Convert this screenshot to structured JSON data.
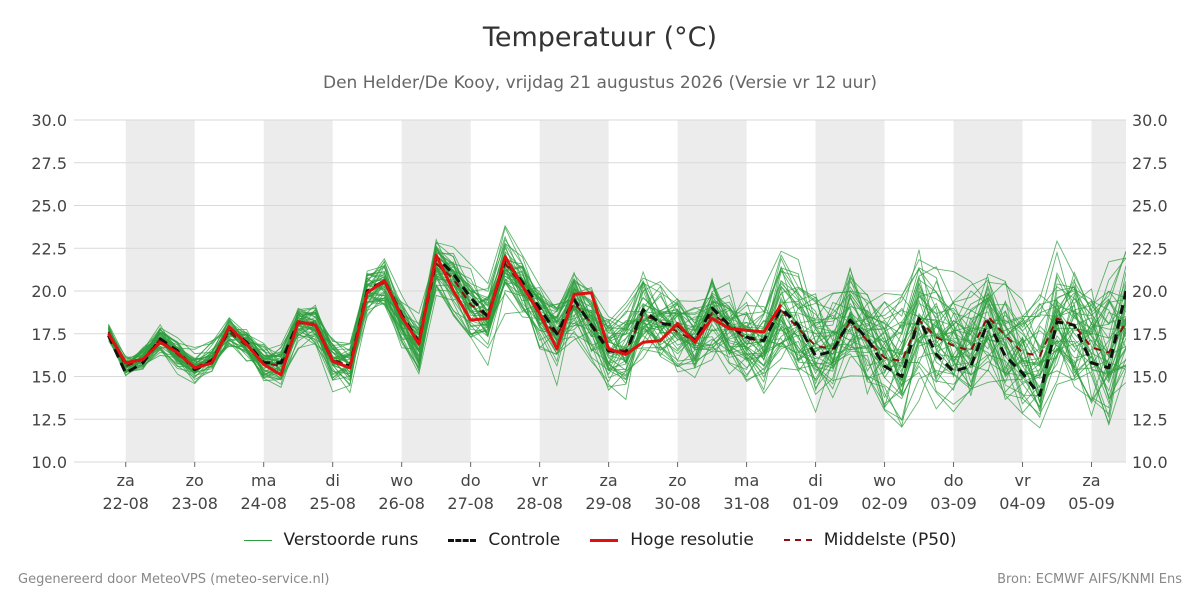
{
  "header": {
    "title": "Temperatuur (°C)",
    "subtitle": "Den Helder/De Kooy, vrijdag 21 augustus 2026 (Versie vr 12 uur)"
  },
  "footer": {
    "left": "Gegenereerd door MeteoVPS (meteo-service.nl)",
    "right": "Bron: ECMWF AIFS/KNMI Ens"
  },
  "colors": {
    "ensemble": "#2e9e3e",
    "control": "#111111",
    "high_res": "#e01010",
    "median": "#8b1010",
    "shade": "#ececec",
    "grid": "#d9d9d9"
  },
  "legend": [
    {
      "label": "Verstoorde runs",
      "color": "#2e9e3e",
      "style": "thin"
    },
    {
      "label": "Controle",
      "color": "#111111",
      "style": "dashed"
    },
    {
      "label": "Hoge resolutie",
      "color": "#e01010",
      "style": "solid"
    },
    {
      "label": "Middelste (P50)",
      "color": "#8b1010",
      "style": "dashed-thin"
    }
  ],
  "chart_data": {
    "type": "line",
    "y_ticks": [
      "10.0",
      "12.5",
      "15.0",
      "17.5",
      "20.0",
      "22.5",
      "25.0",
      "27.5",
      "30.0"
    ],
    "ylim": [
      10,
      30
    ],
    "xlim_days": [
      -0.75,
      14.5
    ],
    "x_ticks": [
      {
        "day": "za",
        "date": "22-08"
      },
      {
        "day": "zo",
        "date": "23-08"
      },
      {
        "day": "ma",
        "date": "24-08"
      },
      {
        "day": "di",
        "date": "25-08"
      },
      {
        "day": "wo",
        "date": "26-08"
      },
      {
        "day": "do",
        "date": "27-08"
      },
      {
        "day": "vr",
        "date": "28-08"
      },
      {
        "day": "za",
        "date": "29-08"
      },
      {
        "day": "zo",
        "date": "30-08"
      },
      {
        "day": "ma",
        "date": "31-08"
      },
      {
        "day": "di",
        "date": "01-09"
      },
      {
        "day": "wo",
        "date": "02-09"
      },
      {
        "day": "do",
        "date": "03-09"
      },
      {
        "day": "vr",
        "date": "04-09"
      },
      {
        "day": "za",
        "date": "05-09"
      }
    ],
    "grid": true,
    "legend_position": "bottom",
    "ensemble_members": 50,
    "x_step_days": 0.25,
    "x_start_days": -0.25,
    "series": [
      {
        "name": "Controle",
        "style": "dashed",
        "values": [
          17.4,
          15.2,
          15.8,
          17.2,
          16.5,
          15.4,
          15.9,
          17.8,
          17.0,
          15.8,
          15.8,
          18.2,
          18.0,
          15.9,
          15.6,
          20.0,
          20.6,
          18.6,
          17.0,
          22.0,
          21.0,
          19.6,
          18.5,
          21.8,
          20.5,
          19.0,
          17.5,
          19.5,
          18.0,
          16.5,
          16.4,
          18.9,
          18.1,
          18.0,
          17.1,
          19.0,
          18.0,
          17.3,
          17.1,
          19.0,
          18.0,
          16.2,
          16.5,
          18.3,
          17.2,
          15.6,
          15.0,
          18.4,
          16.3,
          15.3,
          15.6,
          18.2,
          16.2,
          15.2,
          13.9,
          18.2,
          18.0,
          15.8,
          15.5,
          20.0
        ]
      },
      {
        "name": "Hoge resolutie",
        "style": "solid",
        "values": [
          17.5,
          15.8,
          16.0,
          17.0,
          16.4,
          15.5,
          15.8,
          17.9,
          16.9,
          15.7,
          15.1,
          18.2,
          18.0,
          15.9,
          15.5,
          19.9,
          20.6,
          18.5,
          16.9,
          22.1,
          20.0,
          18.3,
          18.4,
          22.0,
          20.3,
          18.7,
          16.6,
          19.8,
          19.9,
          16.6,
          16.3,
          17.0,
          17.1,
          18.1,
          17.0,
          18.4,
          17.8,
          17.7,
          17.6,
          19.2
        ]
      },
      {
        "name": "Middelste (P50)",
        "style": "dashed-thin",
        "values": [
          17.6,
          15.6,
          16.0,
          17.2,
          16.3,
          15.5,
          16.0,
          17.6,
          16.8,
          15.8,
          15.6,
          18.1,
          18.1,
          16.0,
          15.6,
          19.9,
          20.5,
          18.5,
          17.0,
          21.6,
          20.7,
          19.2,
          18.5,
          21.6,
          20.3,
          18.6,
          17.4,
          19.3,
          18.1,
          16.6,
          16.5,
          18.6,
          18.2,
          17.6,
          17.1,
          18.7,
          17.9,
          17.2,
          17.1,
          18.9,
          17.8,
          16.8,
          16.6,
          18.2,
          17.1,
          16.1,
          15.9,
          18.3,
          17.3,
          16.8,
          16.5,
          18.5,
          17.4,
          16.4,
          16.2,
          18.4,
          18.0,
          16.7,
          16.4,
          18.2
        ]
      }
    ]
  }
}
